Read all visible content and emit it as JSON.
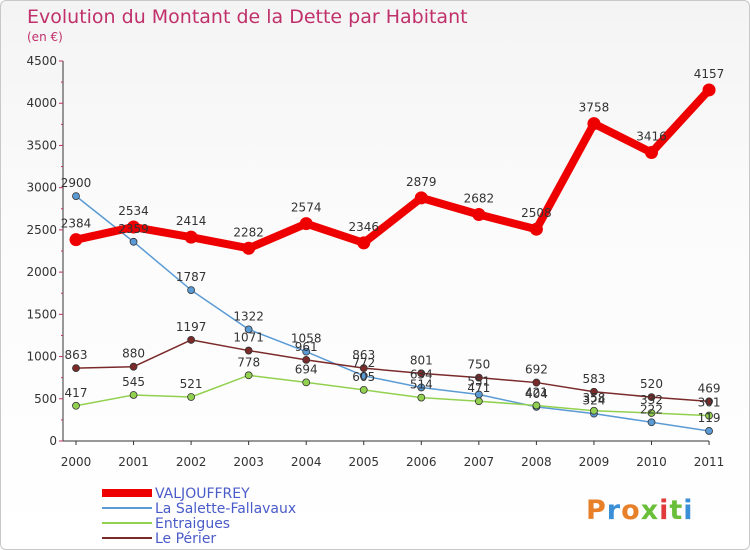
{
  "chart_data": {
    "type": "line",
    "title": "Evolution du Montant de la Dette par Habitant",
    "subtitle": "(en €)",
    "x": [
      "2000",
      "2001",
      "2002",
      "2003",
      "2004",
      "2005",
      "2006",
      "2007",
      "2008",
      "2009",
      "2010",
      "2011"
    ],
    "ylim": [
      0,
      4500
    ],
    "yticks": [
      0,
      500,
      1000,
      1500,
      2000,
      2500,
      3000,
      3500,
      4000,
      4500
    ],
    "grid": false,
    "legend_position": "bottom-left",
    "series": [
      {
        "name": "VALJOUFFREY",
        "color": "#ee0000",
        "values": [
          2384,
          2534,
          2414,
          2282,
          2574,
          2346,
          2879,
          2682,
          2508,
          3758,
          3416,
          4157
        ],
        "labels": [
          "2384",
          "2534",
          "2414",
          "2282",
          "2574",
          "2346",
          "2879",
          "2682",
          "2508",
          "3758",
          "3416",
          "4157"
        ]
      },
      {
        "name": "La Salette-Fallavaux",
        "color": "#5b9bd5",
        "values": [
          2900,
          2359,
          1787,
          1322,
          1058,
          772,
          634,
          551,
          404,
          324,
          222,
          119
        ],
        "labels": [
          "2900",
          "2359",
          "1787",
          "1322",
          "1058",
          "772",
          "634",
          "551",
          "404",
          "324",
          "222",
          "119"
        ]
      },
      {
        "name": "Entraigues",
        "color": "#92d050",
        "values": [
          417,
          545,
          521,
          778,
          694,
          605,
          514,
          471,
          421,
          358,
          332,
          301
        ],
        "labels": [
          "417",
          "545",
          "521",
          "778",
          "694",
          "605",
          "514",
          "471",
          "421",
          "358",
          "332",
          "301"
        ]
      },
      {
        "name": "Le Périer",
        "color": "#7b2a2a",
        "values": [
          863,
          880,
          1197,
          1071,
          961,
          863,
          801,
          750,
          692,
          583,
          520,
          469
        ],
        "labels": [
          "863",
          "880",
          "1197",
          "1071",
          "961",
          "863",
          "801",
          "750",
          "692",
          "583",
          "520",
          "469"
        ]
      }
    ]
  },
  "branding": {
    "logo_text": "Proxiti"
  }
}
